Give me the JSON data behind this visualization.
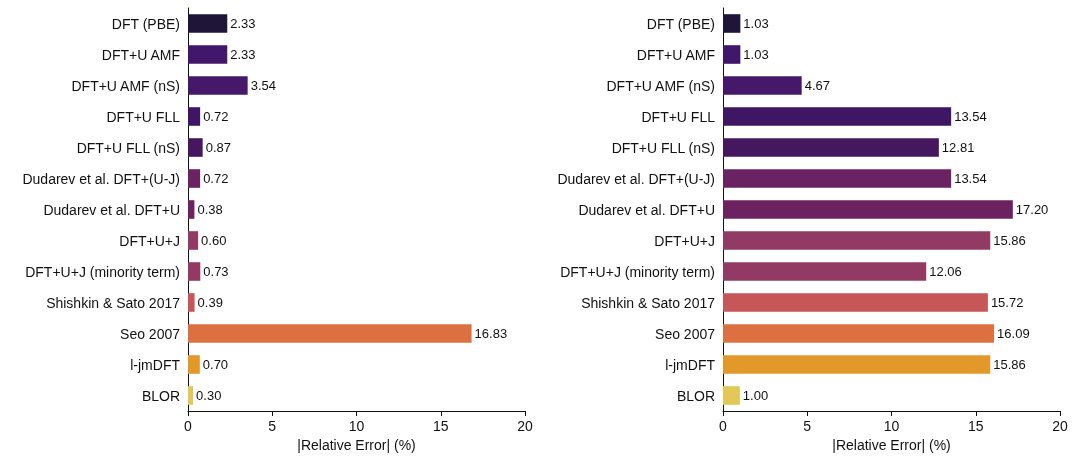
{
  "chart_data": [
    {
      "type": "bar",
      "orientation": "horizontal",
      "xlabel": "|Relative Error| (%)",
      "categories": [
        "DFT (PBE)",
        "DFT+U AMF",
        "DFT+U AMF (nS)",
        "DFT+U FLL",
        "DFT+U FLL (nS)",
        "Dudarev et al. DFT+(U-J)",
        "Dudarev et al. DFT+U",
        "DFT+U+J",
        "DFT+U+J (minority term)",
        "Shishkin & Sato 2017",
        "Seo 2007",
        "l-jmDFT",
        "BLOR"
      ],
      "values": [
        2.33,
        2.33,
        3.54,
        0.72,
        0.87,
        0.72,
        0.38,
        0.6,
        0.73,
        0.39,
        16.83,
        0.7,
        0.3
      ],
      "value_labels": [
        "2.33",
        "2.33",
        "3.54",
        "0.72",
        "0.87",
        "0.72",
        "0.38",
        "0.60",
        "0.73",
        "0.39",
        "16.83",
        "0.70",
        "0.30"
      ],
      "colors": [
        "#1e1538",
        "#40176a",
        "#46186a",
        "#3e1663",
        "#45175f",
        "#6a2262",
        "#6c2161",
        "#913a63",
        "#923a63",
        "#c65657",
        "#dc7040",
        "#e3982a",
        "#e3c757"
      ],
      "xlim": [
        0,
        20
      ],
      "xticks": [
        0,
        5,
        10,
        15,
        20
      ]
    },
    {
      "type": "bar",
      "orientation": "horizontal",
      "xlabel": "|Relative Error| (%)",
      "categories": [
        "DFT (PBE)",
        "DFT+U AMF",
        "DFT+U AMF (nS)",
        "DFT+U FLL",
        "DFT+U FLL (nS)",
        "Dudarev et al. DFT+(U-J)",
        "Dudarev et al. DFT+U",
        "DFT+U+J",
        "DFT+U+J (minority term)",
        "Shishkin & Sato 2017",
        "Seo 2007",
        "l-jmDFT",
        "BLOR"
      ],
      "values": [
        1.03,
        1.03,
        4.67,
        13.54,
        12.81,
        13.54,
        17.2,
        15.86,
        12.06,
        15.72,
        16.09,
        15.86,
        1.0
      ],
      "value_labels": [
        "1.03",
        "1.03",
        "4.67",
        "13.54",
        "12.81",
        "13.54",
        "17.20",
        "15.86",
        "12.06",
        "15.72",
        "16.09",
        "15.86",
        "1.00"
      ],
      "colors": [
        "#1e1538",
        "#40176a",
        "#46186a",
        "#3e1663",
        "#45175f",
        "#6a2262",
        "#6c2161",
        "#913a63",
        "#923a63",
        "#c65657",
        "#dc7040",
        "#e3982a",
        "#e3c757"
      ],
      "xlim": [
        0,
        20
      ],
      "xticks": [
        0,
        5,
        10,
        15,
        20
      ]
    }
  ]
}
